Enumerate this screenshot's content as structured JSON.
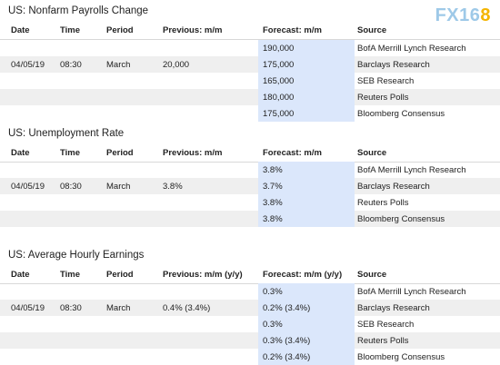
{
  "logo": {
    "text": "FX16",
    "accent": "8"
  },
  "columns_basic": {
    "date": "Date",
    "time": "Time",
    "period": "Period",
    "prev": "Previous: m/m",
    "fc": "Forecast: m/m",
    "src": "Source"
  },
  "columns_yy": {
    "date": "Date",
    "time": "Time",
    "period": "Period",
    "prev": "Previous: m/m (y/y)",
    "fc": "Forecast: m/m (y/y)",
    "src": "Source"
  },
  "sections": [
    {
      "title": "US: Nonfarm Payrolls Change",
      "date": "04/05/19",
      "time": "08:30",
      "period": "March",
      "previous": "20,000",
      "forecasts": [
        {
          "value": "190,000",
          "source": "BofA Merrill Lynch Research"
        },
        {
          "value": "175,000",
          "source": "Barclays Research"
        },
        {
          "value": "165,000",
          "source": "SEB Research"
        },
        {
          "value": "180,000",
          "source": "Reuters Polls"
        },
        {
          "value": "175,000",
          "source": "Bloomberg Consensus"
        }
      ]
    },
    {
      "title": "US: Unemployment Rate",
      "date": "04/05/19",
      "time": "08:30",
      "period": "March",
      "previous": "3.8%",
      "forecasts": [
        {
          "value": "3.8%",
          "source": "BofA Merrill Lynch Research"
        },
        {
          "value": "3.7%",
          "source": "Barclays Research"
        },
        {
          "value": "3.8%",
          "source": "Reuters Polls"
        },
        {
          "value": "3.8%",
          "source": "Bloomberg Consensus"
        }
      ]
    },
    {
      "title": "US: Average Hourly Earnings",
      "date": "04/05/19",
      "time": "08:30",
      "period": "March",
      "previous": "0.4% (3.4%)",
      "forecasts": [
        {
          "value": "0.3%",
          "source": "BofA Merrill Lynch Research"
        },
        {
          "value": "0.2% (3.4%)",
          "source": "Barclays Research"
        },
        {
          "value": "0.3%",
          "source": "SEB Research"
        },
        {
          "value": "0.3% (3.4%)",
          "source": "Reuters Polls"
        },
        {
          "value": "0.2% (3.4%)",
          "source": "Bloomberg Consensus"
        }
      ]
    }
  ]
}
